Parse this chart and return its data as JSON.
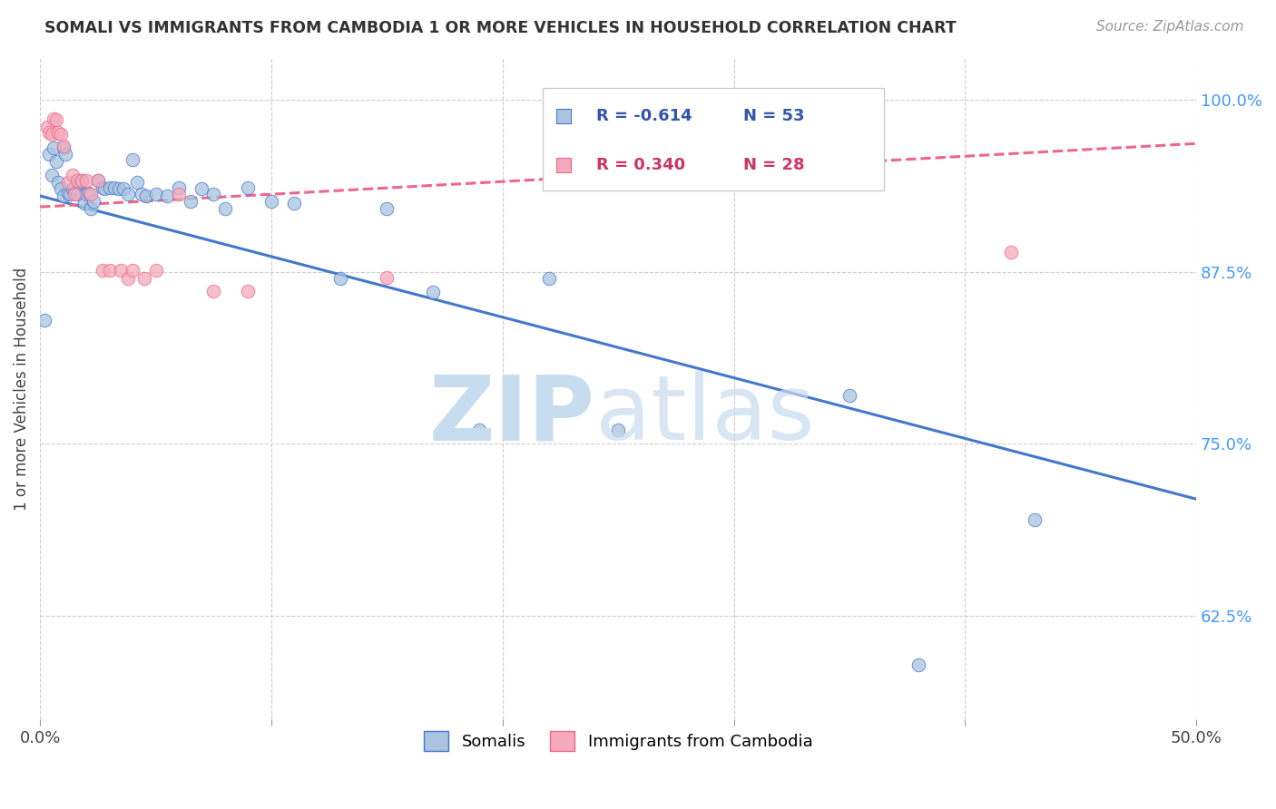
{
  "title": "SOMALI VS IMMIGRANTS FROM CAMBODIA 1 OR MORE VEHICLES IN HOUSEHOLD CORRELATION CHART",
  "source": "Source: ZipAtlas.com",
  "ylabel_label": "1 or more Vehicles in Household",
  "x_min": 0.0,
  "x_max": 0.5,
  "y_min": 0.55,
  "y_max": 1.03,
  "x_tick_positions": [
    0.0,
    0.1,
    0.2,
    0.3,
    0.4,
    0.5
  ],
  "x_tick_labels": [
    "0.0%",
    "",
    "",
    "",
    "",
    "50.0%"
  ],
  "y_ticks": [
    0.625,
    0.75,
    0.875,
    1.0
  ],
  "y_tick_labels": [
    "62.5%",
    "75.0%",
    "87.5%",
    "100.0%"
  ],
  "somali_r": -0.614,
  "somali_n": 53,
  "cambodia_r": 0.34,
  "cambodia_n": 28,
  "somali_color": "#A8C4E0",
  "cambodia_color": "#F4AABB",
  "somali_line_color": "#4477CC",
  "cambodia_line_color": "#EE6688",
  "somali_line_x0": 0.0,
  "somali_line_y0": 0.93,
  "somali_line_x1": 0.5,
  "somali_line_y1": 0.71,
  "cambodia_line_x0": 0.0,
  "cambodia_line_y0": 0.922,
  "cambodia_line_x1": 0.5,
  "cambodia_line_y1": 0.968,
  "somali_x": [
    0.002,
    0.004,
    0.005,
    0.006,
    0.007,
    0.008,
    0.009,
    0.01,
    0.01,
    0.011,
    0.012,
    0.013,
    0.014,
    0.015,
    0.016,
    0.017,
    0.018,
    0.019,
    0.02,
    0.021,
    0.022,
    0.023,
    0.025,
    0.027,
    0.028,
    0.03,
    0.032,
    0.034,
    0.036,
    0.038,
    0.04,
    0.042,
    0.044,
    0.046,
    0.05,
    0.055,
    0.06,
    0.065,
    0.07,
    0.075,
    0.08,
    0.09,
    0.1,
    0.11,
    0.13,
    0.15,
    0.17,
    0.19,
    0.22,
    0.25,
    0.35,
    0.38,
    0.43
  ],
  "somali_y": [
    0.84,
    0.96,
    0.945,
    0.965,
    0.955,
    0.94,
    0.935,
    0.965,
    0.93,
    0.96,
    0.932,
    0.931,
    0.935,
    0.936,
    0.931,
    0.94,
    0.941,
    0.925,
    0.931,
    0.932,
    0.921,
    0.926,
    0.941,
    0.936,
    0.935,
    0.936,
    0.936,
    0.935,
    0.935,
    0.931,
    0.956,
    0.94,
    0.931,
    0.93,
    0.931,
    0.93,
    0.936,
    0.926,
    0.935,
    0.931,
    0.921,
    0.936,
    0.926,
    0.925,
    0.87,
    0.921,
    0.86,
    0.76,
    0.87,
    0.76,
    0.785,
    0.59,
    0.695
  ],
  "cambodia_x": [
    0.003,
    0.004,
    0.005,
    0.006,
    0.007,
    0.008,
    0.009,
    0.01,
    0.012,
    0.014,
    0.015,
    0.016,
    0.018,
    0.02,
    0.022,
    0.025,
    0.027,
    0.03,
    0.035,
    0.038,
    0.04,
    0.045,
    0.05,
    0.06,
    0.075,
    0.09,
    0.15,
    0.42
  ],
  "cambodia_y": [
    0.98,
    0.976,
    0.975,
    0.986,
    0.985,
    0.976,
    0.975,
    0.966,
    0.94,
    0.945,
    0.931,
    0.941,
    0.941,
    0.941,
    0.931,
    0.941,
    0.876,
    0.876,
    0.876,
    0.87,
    0.876,
    0.87,
    0.876,
    0.931,
    0.861,
    0.861,
    0.871,
    0.889
  ]
}
